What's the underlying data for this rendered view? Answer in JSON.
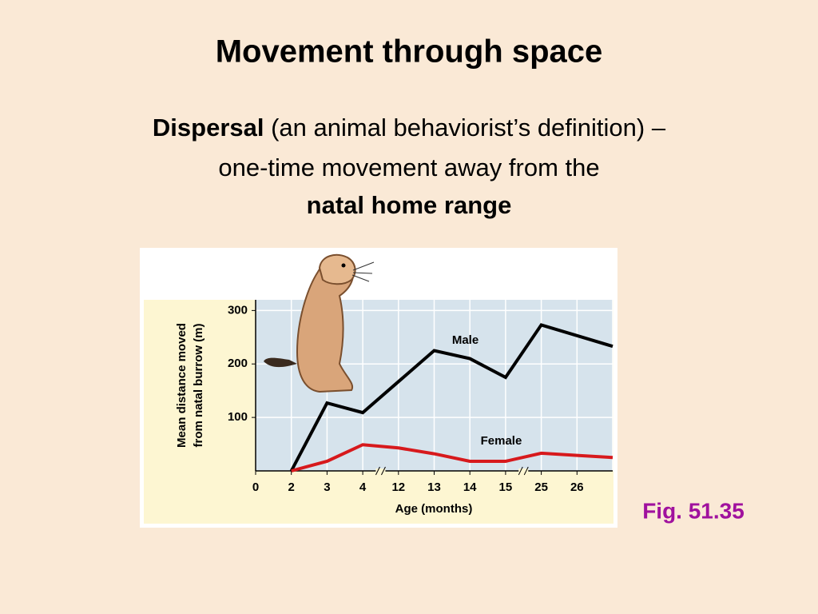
{
  "title": "Movement through space",
  "text": {
    "term": "Dispersal",
    "line1": "(an animal behaviorist’s definition) –",
    "line2": "one-time movement away from the",
    "line3": "natal home range"
  },
  "figure_label": "Fig. 51.35",
  "chart_data": {
    "type": "line",
    "xlabel": "Age (months)",
    "ylabel": [
      "Mean distance moved",
      "from natal burrow (m)"
    ],
    "categories": [
      "0",
      "2",
      "3",
      "4",
      "12",
      "13",
      "14",
      "15",
      "25",
      "26",
      null
    ],
    "series": [
      {
        "name": "Male",
        "color": "#000000",
        "values": [
          null,
          0,
          127,
          109,
          167,
          225,
          210,
          175,
          273,
          253,
          233
        ]
      },
      {
        "name": "Female",
        "color": "#d7191c",
        "values": [
          null,
          0,
          18,
          49,
          43,
          32,
          18,
          18,
          33,
          29,
          25
        ]
      }
    ],
    "ylim": [
      0,
      320
    ],
    "yticks": [
      100,
      200,
      300
    ],
    "grid": true
  }
}
